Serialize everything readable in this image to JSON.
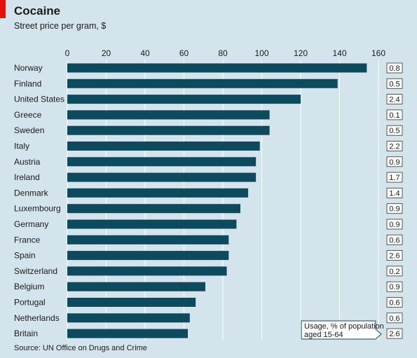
{
  "title": "Cocaine",
  "subtitle": "Street price per gram, $",
  "source": "Source: UN Office on Drugs and Crime",
  "callout": {
    "line1": "Usage, % of population",
    "line2": "aged 15-64"
  },
  "colors": {
    "bar": "#0e4a5e",
    "accent": "#e3120b",
    "background": "#d4e4ec",
    "grid": "#ffffff"
  },
  "chart_data": {
    "type": "bar",
    "orientation": "horizontal",
    "title": "Cocaine",
    "subtitle": "Street price per gram, $",
    "xlim": [
      0,
      160
    ],
    "xticks": [
      0,
      20,
      40,
      60,
      80,
      100,
      120,
      140,
      160
    ],
    "grid": true,
    "categories": [
      "Norway",
      "Finland",
      "United States",
      "Greece",
      "Sweden",
      "Italy",
      "Austria",
      "Ireland",
      "Denmark",
      "Luxembourg",
      "Germany",
      "France",
      "Spain",
      "Switzerland",
      "Belgium",
      "Portugal",
      "Netherlands",
      "Britain"
    ],
    "values": [
      154,
      139,
      120,
      104,
      104,
      99,
      97,
      97,
      93,
      89,
      87,
      83,
      83,
      82,
      71,
      66,
      63,
      62
    ],
    "usage": [
      "0.8",
      "0.5",
      "2.4",
      "0.1",
      "0.5",
      "2.2",
      "0.9",
      "1.7",
      "1.4",
      "0.9",
      "0.9",
      "0.6",
      "2.6",
      "0.2",
      "0.9",
      "0.6",
      "0.6",
      "2.6"
    ]
  }
}
